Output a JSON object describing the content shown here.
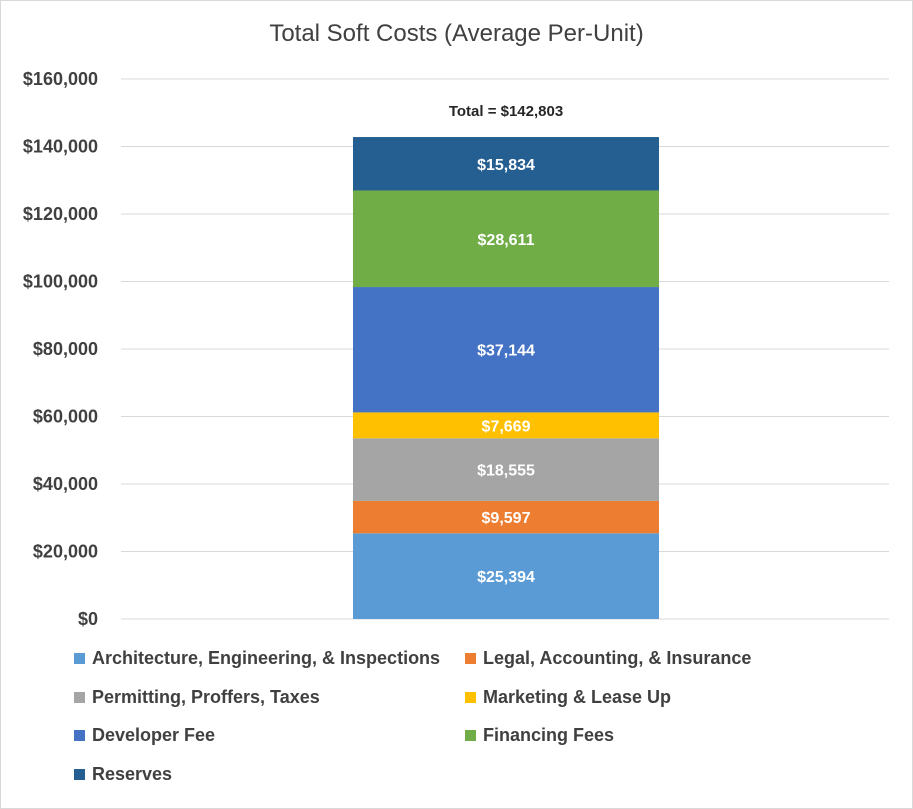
{
  "chart_data": {
    "type": "bar",
    "stacked": true,
    "title": "Total Soft Costs (Average Per-Unit)",
    "ylim": [
      0,
      160000
    ],
    "yticks": [
      "$0",
      "$20,000",
      "$40,000",
      "$60,000",
      "$80,000",
      "$100,000",
      "$120,000",
      "$140,000",
      "$160,000"
    ],
    "grid": true,
    "legend_position": "bottom",
    "total_label": "Total = $142,803",
    "series": [
      {
        "name": "Architecture, Engineering, & Inspections",
        "value": 25394,
        "label": "$25,394",
        "color": "#5b9bd5"
      },
      {
        "name": "Legal, Accounting, & Insurance",
        "value": 9597,
        "label": "$9,597",
        "color": "#ed7d31"
      },
      {
        "name": "Permitting, Proffers, Taxes",
        "value": 18555,
        "label": "$18,555",
        "color": "#a5a5a5"
      },
      {
        "name": "Marketing & Lease Up",
        "value": 7669,
        "label": "$7,669",
        "color": "#ffc000"
      },
      {
        "name": "Developer Fee",
        "value": 37144,
        "label": "$37,144",
        "color": "#4472c4"
      },
      {
        "name": "Financing Fees",
        "value": 28611,
        "label": "$28,611",
        "color": "#70ad47"
      },
      {
        "name": "Reserves",
        "value": 15834,
        "label": "$15,834",
        "color": "#255e91"
      }
    ]
  }
}
